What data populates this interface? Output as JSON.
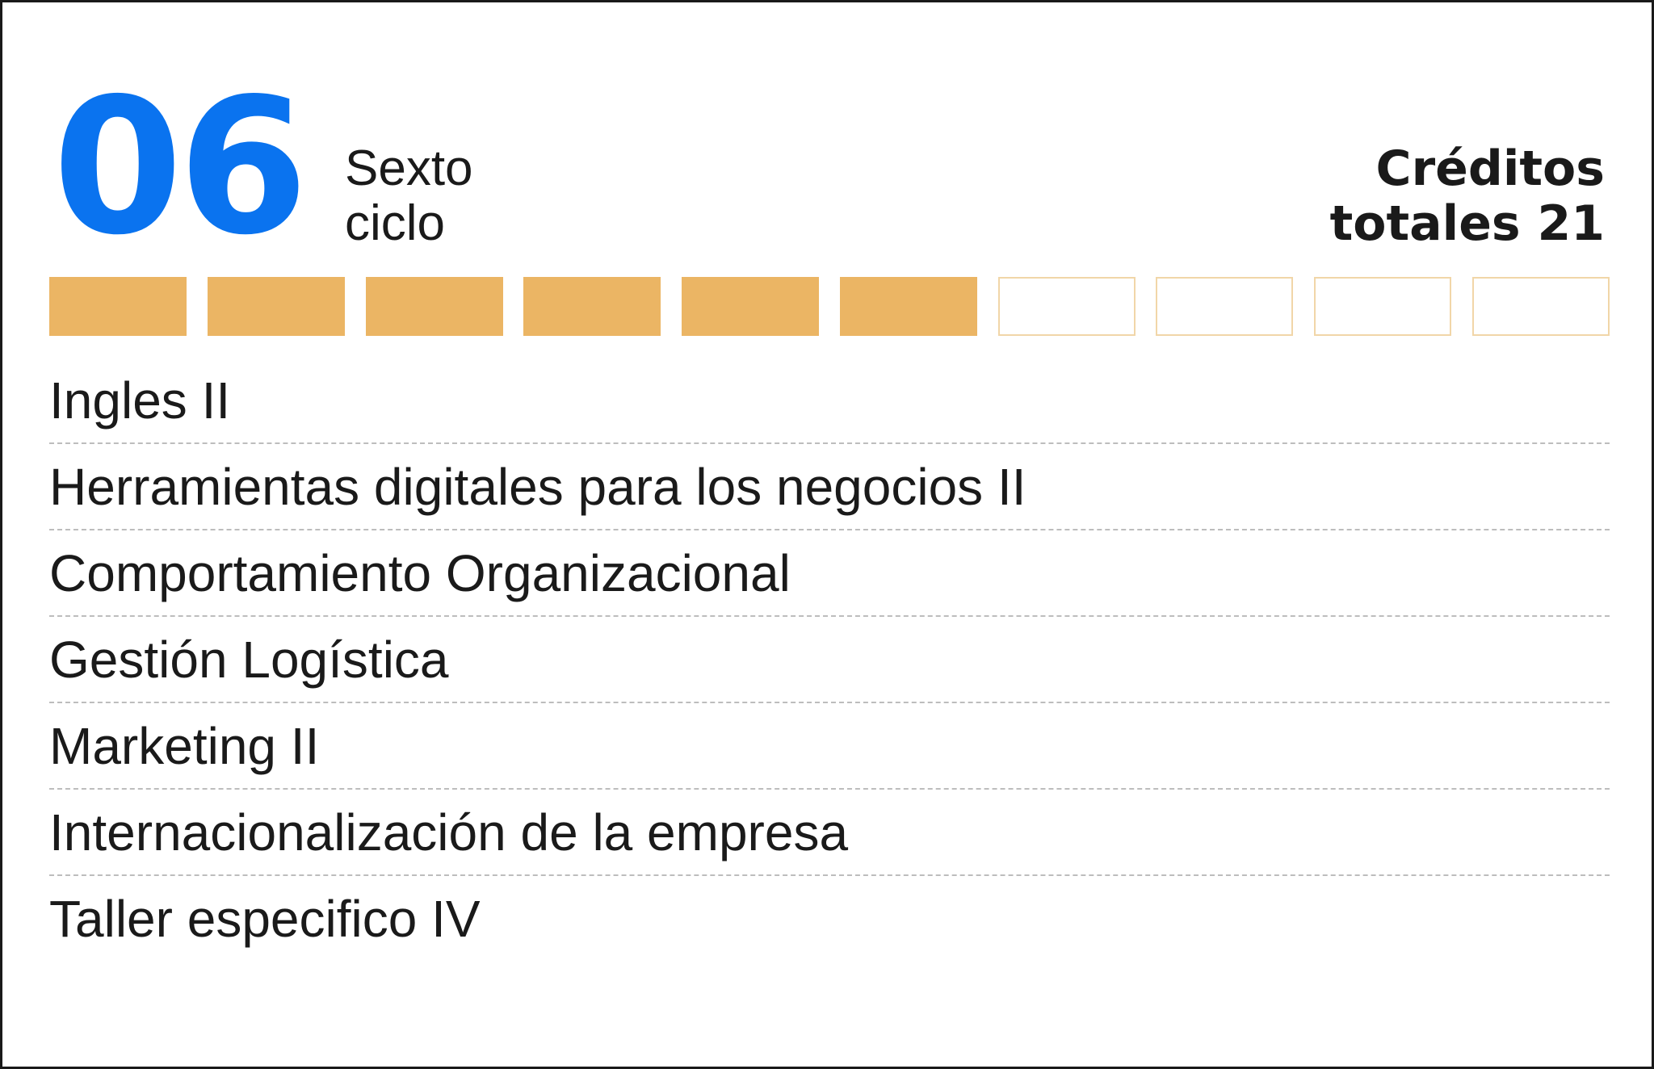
{
  "header": {
    "cycle_number": "06",
    "cycle_name_line1": "Sexto",
    "cycle_name_line2": "ciclo",
    "credits_line1": "Créditos",
    "credits_line2": "totales 21",
    "accent_color": "#0a73ef"
  },
  "progress": {
    "total_segments": 10,
    "filled_segments": 6,
    "filled_color": "#ebb564"
  },
  "courses": [
    "Ingles II",
    "Herramientas digitales para los negocios II",
    "Comportamiento Organizacional",
    "Gestión Logística",
    "Marketing II",
    "Internacionalización de la empresa",
    "Taller especifico IV"
  ]
}
